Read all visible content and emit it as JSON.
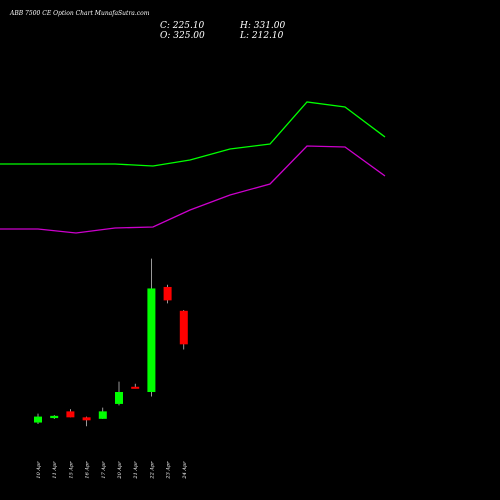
{
  "chart_data": {
    "type": "candlestick",
    "title": "ABB 7500 CE Option Chart MunafaSutra.com",
    "ohlc_readout": {
      "close": "C: 225.10",
      "open": "O: 325.00",
      "high": "H: 331.00",
      "low": "L: 212.10"
    },
    "categories": [
      "10 Apr",
      "11 Apr",
      "15 Apr",
      "16 Apr",
      "17 Apr",
      "20 Apr",
      "21 Apr",
      "22 Apr",
      "23 Apr",
      "24 Apr"
    ],
    "candles": [
      {
        "date": "10 Apr",
        "open": 10,
        "high": 22,
        "low": 8,
        "close": 18,
        "direction": "up"
      },
      {
        "date": "11 Apr",
        "open": 16,
        "high": 20,
        "low": 15,
        "close": 19,
        "direction": "up"
      },
      {
        "date": "15 Apr",
        "open": 25,
        "high": 28,
        "low": 17,
        "close": 17,
        "direction": "down"
      },
      {
        "date": "16 Apr",
        "open": 17,
        "high": 18,
        "low": 5,
        "close": 13,
        "direction": "down"
      },
      {
        "date": "17 Apr",
        "open": 15,
        "high": 30,
        "low": 15,
        "close": 25,
        "direction": "up"
      },
      {
        "date": "20 Apr",
        "open": 35,
        "high": 65,
        "low": 33,
        "close": 51,
        "direction": "up"
      },
      {
        "date": "21 Apr",
        "open": 58,
        "high": 62,
        "low": 56,
        "close": 57,
        "direction": "down"
      },
      {
        "date": "22 Apr",
        "open": 51,
        "high": 230,
        "low": 45,
        "close": 190,
        "direction": "up"
      },
      {
        "date": "23 Apr",
        "open": 192,
        "high": 195,
        "low": 170,
        "close": 174,
        "direction": "down"
      },
      {
        "date": "24 Apr",
        "open": 160,
        "high": 161,
        "low": 108,
        "close": 115,
        "direction": "down"
      }
    ],
    "upper_band": {
      "color": "#00ff00",
      "points": [
        {
          "x": 0,
          "y": 164
        },
        {
          "x": 60,
          "y": 164
        },
        {
          "x": 115,
          "y": 164
        },
        {
          "x": 153,
          "y": 166
        },
        {
          "x": 190,
          "y": 160
        },
        {
          "x": 230,
          "y": 149
        },
        {
          "x": 270,
          "y": 144
        },
        {
          "x": 307,
          "y": 102
        },
        {
          "x": 345,
          "y": 107
        },
        {
          "x": 385,
          "y": 137
        }
      ]
    },
    "lower_band": {
      "color": "#cc00cc",
      "points": [
        {
          "x": 0,
          "y": 229
        },
        {
          "x": 38,
          "y": 229
        },
        {
          "x": 76,
          "y": 233
        },
        {
          "x": 115,
          "y": 228
        },
        {
          "x": 153,
          "y": 227
        },
        {
          "x": 190,
          "y": 210
        },
        {
          "x": 230,
          "y": 195
        },
        {
          "x": 270,
          "y": 184
        },
        {
          "x": 307,
          "y": 146
        },
        {
          "x": 345,
          "y": 147
        },
        {
          "x": 385,
          "y": 176
        }
      ]
    },
    "colors": {
      "up": "#00ff00",
      "down": "#ff0000",
      "background": "#000000",
      "text": "#ffffff"
    }
  }
}
